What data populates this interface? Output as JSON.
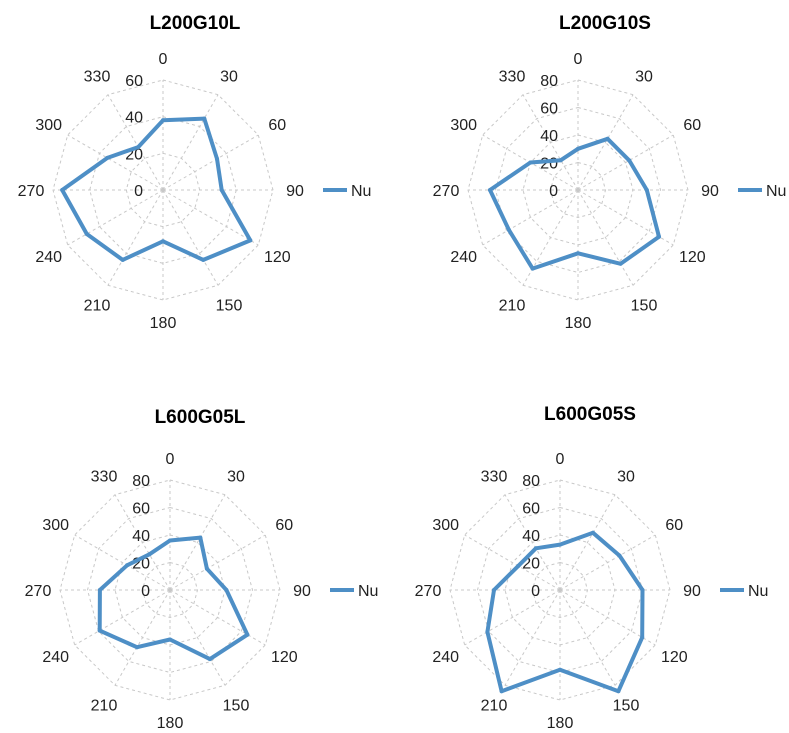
{
  "chart_data": [
    {
      "type": "radar",
      "title": "L200G10L",
      "categories": [
        "0",
        "30",
        "60",
        "90",
        "120",
        "150",
        "180",
        "210",
        "240",
        "270",
        "300",
        "330"
      ],
      "radial_ticks": [
        "0",
        "20",
        "40",
        "60"
      ],
      "rmax": 60,
      "series": [
        {
          "name": "Nu",
          "values": [
            38,
            45,
            34,
            32,
            55,
            44,
            28,
            44,
            48,
            55,
            35,
            27
          ]
        }
      ],
      "legend": "right",
      "grid": true
    },
    {
      "type": "radar",
      "title": "L200G10S",
      "categories": [
        "0",
        "30",
        "60",
        "90",
        "120",
        "150",
        "180",
        "210",
        "240",
        "270",
        "300",
        "330"
      ],
      "radial_ticks": [
        "0",
        "20",
        "40",
        "60",
        "80"
      ],
      "rmax": 80,
      "series": [
        {
          "name": "Nu",
          "values": [
            30,
            43,
            43,
            50,
            68,
            62,
            46,
            66,
            58,
            64,
            40,
            25
          ]
        }
      ],
      "legend": "right",
      "grid": true
    },
    {
      "type": "radar",
      "title": "L600G05L",
      "categories": [
        "0",
        "30",
        "60",
        "90",
        "120",
        "150",
        "180",
        "210",
        "240",
        "270",
        "300",
        "330"
      ],
      "radial_ticks": [
        "0",
        "20",
        "40",
        "60",
        "80"
      ],
      "rmax": 80,
      "series": [
        {
          "name": "Nu",
          "values": [
            36,
            44,
            31,
            41,
            65,
            58,
            36,
            48,
            59,
            51,
            36,
            30
          ]
        }
      ],
      "legend": "right",
      "grid": true
    },
    {
      "type": "radar",
      "title": "L600G05S",
      "categories": [
        "0",
        "30",
        "60",
        "90",
        "120",
        "150",
        "180",
        "210",
        "240",
        "270",
        "300",
        "330"
      ],
      "radial_ticks": [
        "0",
        "20",
        "40",
        "60",
        "80"
      ],
      "rmax": 80,
      "series": [
        {
          "name": "Nu",
          "values": [
            33,
            48,
            50,
            60,
            69,
            85,
            58,
            85,
            61,
            48,
            35,
            35
          ]
        }
      ],
      "legend": "right",
      "grid": true
    }
  ]
}
